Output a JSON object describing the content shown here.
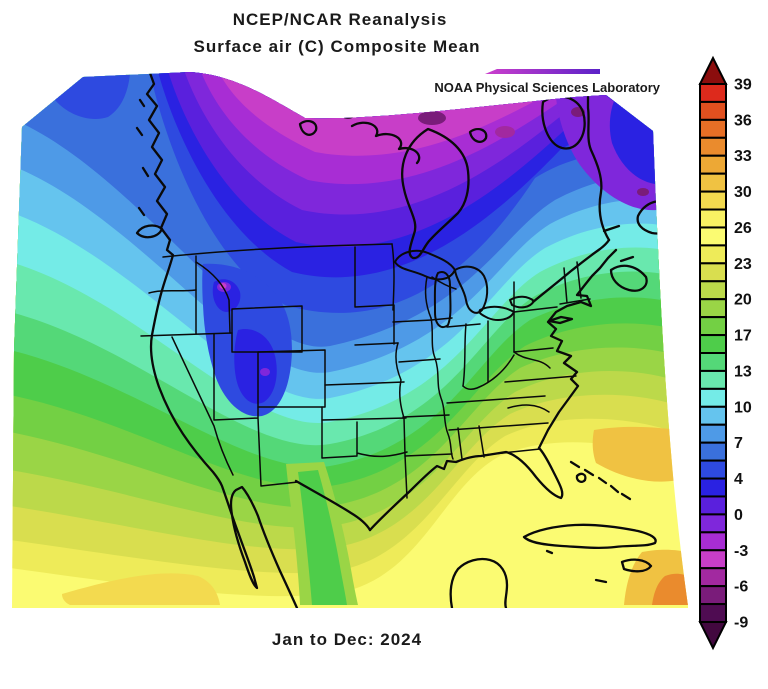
{
  "header": {
    "title_line1": "NCEP/NCAR Reanalysis",
    "title_line2": "Surface air (C) Composite Mean",
    "watermark": "NOAA Physical Sciences Laboratory"
  },
  "footer": {
    "caption": "Jan to Dec: 2024"
  },
  "colorbar": {
    "labels": [
      "39",
      "36",
      "33",
      "30",
      "26",
      "23",
      "20",
      "17",
      "13",
      "10",
      "7",
      "4",
      "0",
      "-3",
      "-6",
      "-9"
    ],
    "cells": [
      "#dd2a1c",
      "#e1501f",
      "#e76f26",
      "#ea8b2d",
      "#eda835",
      "#f0c242",
      "#f3da4f",
      "#f8f163",
      "#fbfb72",
      "#eeeb59",
      "#d9de4f",
      "#bcd94a",
      "#9ad546",
      "#73d044",
      "#4ecd4a",
      "#54d878",
      "#69e8ae",
      "#74ebe7",
      "#65c4ee",
      "#4e9ae7",
      "#3a70dc",
      "#2e4ae0",
      "#2a22e2",
      "#5a20dd",
      "#7f27db",
      "#a82dd4",
      "#c83ec8",
      "#a229a0",
      "#7a1c7a",
      "#4f0c52"
    ],
    "top_arrow": "#8b0d0d",
    "bottom_arrow": "#42083f"
  },
  "logo_line": {
    "color_left": "#cc3fcc",
    "color_right": "#5b21c8"
  },
  "chart_data": {
    "type": "heatmap",
    "title": "NCEP/NCAR Reanalysis",
    "subtitle": "Surface air (C) Composite Mean",
    "period": "Jan to Dec: 2024",
    "units": "C",
    "region": "North America",
    "colorbar_ticks": [
      39,
      36,
      33,
      30,
      26,
      23,
      20,
      17,
      13,
      10,
      7,
      4,
      0,
      -3,
      -6,
      -9
    ],
    "colorbar_range": [
      -9,
      39
    ],
    "colorbar_cells": 30,
    "legend_position": "right",
    "approx_values": {
      "arctic_canada": -4,
      "hudson_bay": -2,
      "northeast_canada": 1,
      "southern_canada_prairies": 3,
      "northern_rockies_cold_pocket": 4,
      "great_lakes": 8,
      "us_midwest": 11,
      "pacific_northwest_coast": 10,
      "california_coast": 15,
      "us_southeast": 19,
      "texas": 20,
      "mexican_highlands": 17,
      "gulf_of_mexico": 25,
      "caribbean_cuba": 26,
      "subtropical_atlantic": 27
    }
  }
}
